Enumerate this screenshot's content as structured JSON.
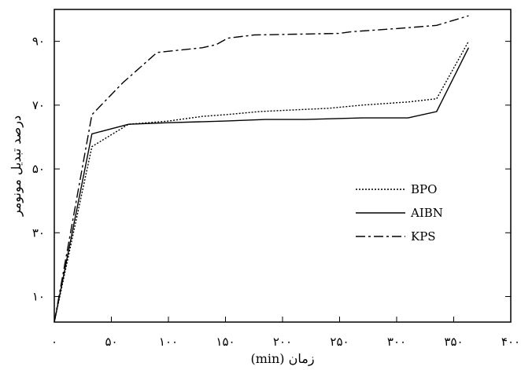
{
  "chart_data": {
    "type": "line",
    "title": "",
    "xlabel": "زمان (min)",
    "ylabel": "درصد تبدیل مونومر",
    "xlim": [
      0,
      400
    ],
    "ylim": [
      2,
      100
    ],
    "grid": false,
    "legend_position": "center-right",
    "x_ticks": [
      0,
      50,
      100,
      150,
      200,
      250,
      300,
      350,
      400
    ],
    "x_tick_labels": [
      "۰",
      "۵۰",
      "۱۰۰",
      "۱۵۰",
      "۲۰۰",
      "۲۵۰",
      "۳۰۰",
      "۳۵۰",
      "۴۰۰"
    ],
    "y_ticks": [
      10,
      30,
      50,
      70,
      90
    ],
    "y_tick_labels": [
      "۱۰",
      "۳۰",
      "۵۰",
      "۷۰",
      "۹۰"
    ],
    "series": [
      {
        "name": "BPO",
        "style": "dotted",
        "x": [
          0,
          33,
          65,
          100,
          130,
          150,
          180,
          210,
          240,
          270,
          310,
          335,
          363
        ],
        "y": [
          2,
          57,
          64,
          65,
          66.5,
          67,
          68,
          68.5,
          69,
          70,
          71,
          72,
          90
        ]
      },
      {
        "name": "AIBN",
        "style": "solid",
        "x": [
          0,
          33,
          65,
          100,
          150,
          185,
          220,
          270,
          310,
          335,
          363
        ],
        "y": [
          2,
          61,
          64,
          64.5,
          65,
          65.5,
          65.5,
          66,
          66,
          68,
          88
        ]
      },
      {
        "name": "KPS",
        "style": "dashdot",
        "x": [
          0,
          33,
          60,
          90,
          130,
          142,
          152,
          175,
          250,
          260,
          300,
          335,
          363
        ],
        "y": [
          2,
          67,
          77,
          86.5,
          88,
          89,
          91,
          92,
          92.5,
          93,
          94,
          95,
          98
        ]
      }
    ]
  }
}
